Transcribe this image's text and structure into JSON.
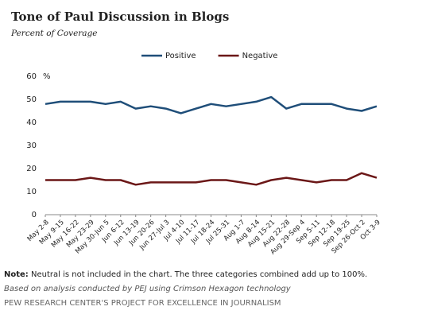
{
  "chart_data": {
    "type": "line",
    "title": "Tone of Paul Discussion in Blogs",
    "subtitle": "Percent of Coverage",
    "y_unit": "%",
    "categories": [
      "May 2-8",
      "May 9-15",
      "May 16-22",
      "May 23-29",
      "May 30-Jun 5",
      "Jun 6-12",
      "Jun 13-19",
      "Jun 20-26",
      "Jun 27-Jul 3",
      "Jul 4-10",
      "Jul 11-17",
      "Jul 18-24",
      "Jul 25-31",
      "Aug 1-7",
      "Aug 8-14",
      "Aug 15-21",
      "Aug 22-28",
      "Aug 29-Sep 4",
      "Sep 5-11",
      "Sep 12-18",
      "Sep 19-25",
      "Sep 26-Oct 2",
      "Oct 3-9"
    ],
    "series": [
      {
        "name": "Positive",
        "color": "#1f4e79",
        "values": [
          48,
          49,
          49,
          49,
          48,
          49,
          46,
          47,
          46,
          44,
          46,
          48,
          47,
          48,
          49,
          51,
          46,
          48,
          48,
          48,
          46,
          45,
          47
        ]
      },
      {
        "name": "Negative",
        "color": "#6b1717",
        "values": [
          15,
          15,
          15,
          16,
          15,
          15,
          13,
          14,
          14,
          14,
          14,
          15,
          15,
          14,
          13,
          15,
          16,
          15,
          14,
          15,
          15,
          18,
          16
        ]
      }
    ],
    "ylim": [
      0,
      60
    ],
    "yticks": [
      0,
      10,
      20,
      30,
      40,
      50,
      60
    ],
    "grid": false,
    "legend": "top",
    "note_label": "Note:",
    "note": "Neutral is not included in the chart. The three categories combined add up to 100%.",
    "source": "Based on analysis conducted by PEJ using Crimson Hexagon technology",
    "credit": "PEW RESEARCH CENTER'S PROJECT FOR EXCELLENCE IN JOURNALISM"
  }
}
